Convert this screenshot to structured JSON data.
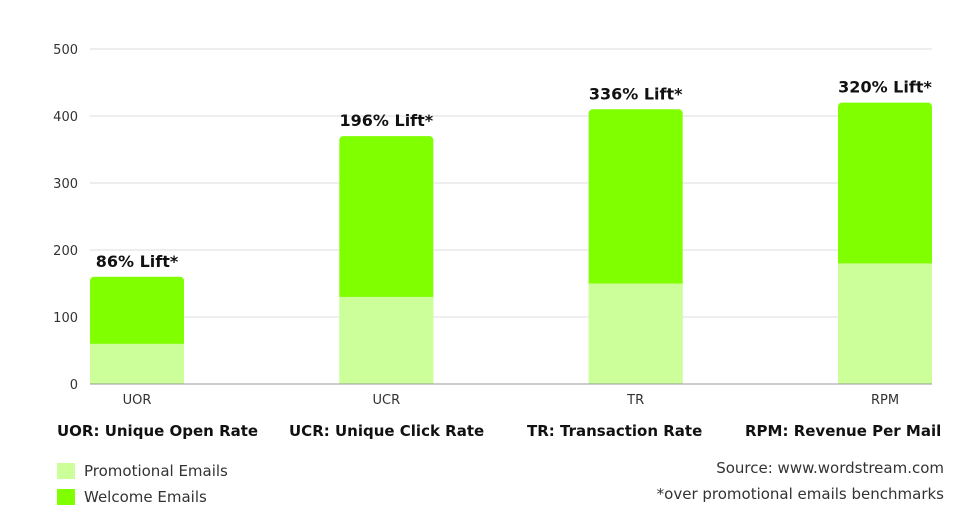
{
  "chart_data": {
    "type": "bar",
    "stacked": true,
    "categories": [
      "UOR",
      "UCR",
      "TR",
      "RPM"
    ],
    "series": [
      {
        "name": "Promotional Emails",
        "values": [
          60,
          130,
          150,
          180
        ]
      },
      {
        "name": "Welcome Emails",
        "values": [
          100,
          240,
          260,
          240
        ]
      }
    ],
    "annotations": [
      "86% Lift*",
      "196% Lift*",
      "336% Lift*",
      "320% Lift*"
    ],
    "yticks": [
      "0",
      "100",
      "200",
      "300",
      "400",
      "500"
    ],
    "ylim": [
      0,
      500
    ],
    "grid": true,
    "legend_position": "bottom-left",
    "colors": {
      "promotional": "#ccff99",
      "welcome": "#7fff00"
    }
  },
  "category_definitions": [
    "UOR: Unique Open Rate",
    "UCR: Unique Click Rate",
    "TR: Transaction Rate",
    "RPM: Revenue Per Mail"
  ],
  "notes": {
    "source": "Source: www.wordstream.com",
    "footnote": "*over promotional emails benchmarks"
  }
}
